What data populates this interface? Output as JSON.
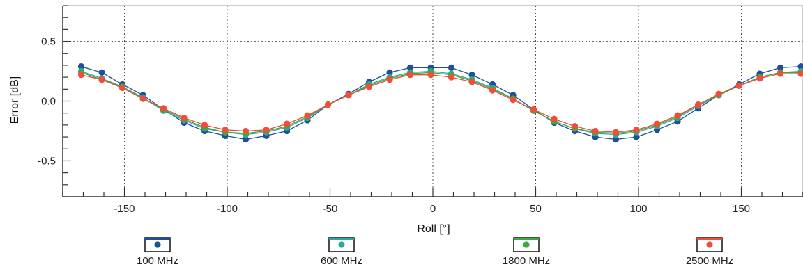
{
  "chart_data": {
    "type": "line",
    "title": "",
    "xlabel": "Roll [°]",
    "ylabel": "Error [dB]",
    "xlim": [
      -180,
      180
    ],
    "ylim": [
      -0.8,
      0.8
    ],
    "x_ticks": [
      -150,
      -100,
      -50,
      0,
      50,
      100,
      150
    ],
    "y_ticks": [
      -0.5,
      0.0,
      0.5
    ],
    "x_tick_labels": [
      "-150",
      "-100",
      "-50",
      "0",
      "50",
      "100",
      "150"
    ],
    "y_tick_labels": [
      "-0.5",
      "0.0",
      "0.5"
    ],
    "grid": true,
    "legend_position": "bottom",
    "x": [
      -171,
      -161,
      -151,
      -141,
      -131,
      -121,
      -111,
      -101,
      -91,
      -81,
      -71,
      -61,
      -51,
      -41,
      -31,
      -21,
      -11,
      -1,
      9,
      19,
      29,
      39,
      49,
      59,
      69,
      79,
      89,
      99,
      109,
      119,
      129,
      139,
      149,
      159,
      169,
      179
    ],
    "series": [
      {
        "name": "100 MHz",
        "color": "#1f4e9c",
        "values": [
          0.29,
          0.24,
          0.14,
          0.05,
          -0.07,
          -0.18,
          -0.25,
          -0.29,
          -0.32,
          -0.29,
          -0.25,
          -0.16,
          -0.03,
          0.06,
          0.16,
          0.24,
          0.28,
          0.28,
          0.28,
          0.22,
          0.14,
          0.05,
          -0.07,
          -0.18,
          -0.25,
          -0.3,
          -0.32,
          -0.3,
          -0.24,
          -0.17,
          -0.06,
          0.05,
          0.14,
          0.23,
          0.28,
          0.29
        ]
      },
      {
        "name": "600 MHz",
        "color": "#2ea89c",
        "values": [
          0.25,
          0.19,
          0.12,
          0.03,
          -0.08,
          -0.16,
          -0.23,
          -0.26,
          -0.28,
          -0.26,
          -0.22,
          -0.14,
          -0.03,
          0.05,
          0.14,
          0.2,
          0.24,
          0.25,
          0.23,
          0.18,
          0.11,
          0.02,
          -0.08,
          -0.17,
          -0.23,
          -0.27,
          -0.28,
          -0.26,
          -0.21,
          -0.14,
          -0.04,
          0.05,
          0.13,
          0.2,
          0.24,
          0.25
        ]
      },
      {
        "name": "1800 MHz",
        "color": "#3daa3d",
        "values": [
          0.24,
          0.18,
          0.12,
          0.02,
          -0.07,
          -0.15,
          -0.22,
          -0.26,
          -0.27,
          -0.25,
          -0.21,
          -0.13,
          -0.03,
          0.05,
          0.13,
          0.19,
          0.23,
          0.24,
          0.22,
          0.17,
          0.1,
          0.02,
          -0.08,
          -0.17,
          -0.23,
          -0.26,
          -0.27,
          -0.25,
          -0.2,
          -0.13,
          -0.03,
          0.05,
          0.13,
          0.2,
          0.24,
          0.24
        ]
      },
      {
        "name": "2500 MHz",
        "color": "#f04e3a",
        "values": [
          0.22,
          0.18,
          0.11,
          0.02,
          -0.06,
          -0.14,
          -0.2,
          -0.24,
          -0.25,
          -0.24,
          -0.19,
          -0.12,
          -0.03,
          0.05,
          0.12,
          0.18,
          0.22,
          0.22,
          0.2,
          0.16,
          0.09,
          0.01,
          -0.07,
          -0.15,
          -0.21,
          -0.25,
          -0.26,
          -0.24,
          -0.19,
          -0.12,
          -0.03,
          0.06,
          0.13,
          0.19,
          0.23,
          0.23
        ]
      }
    ]
  }
}
